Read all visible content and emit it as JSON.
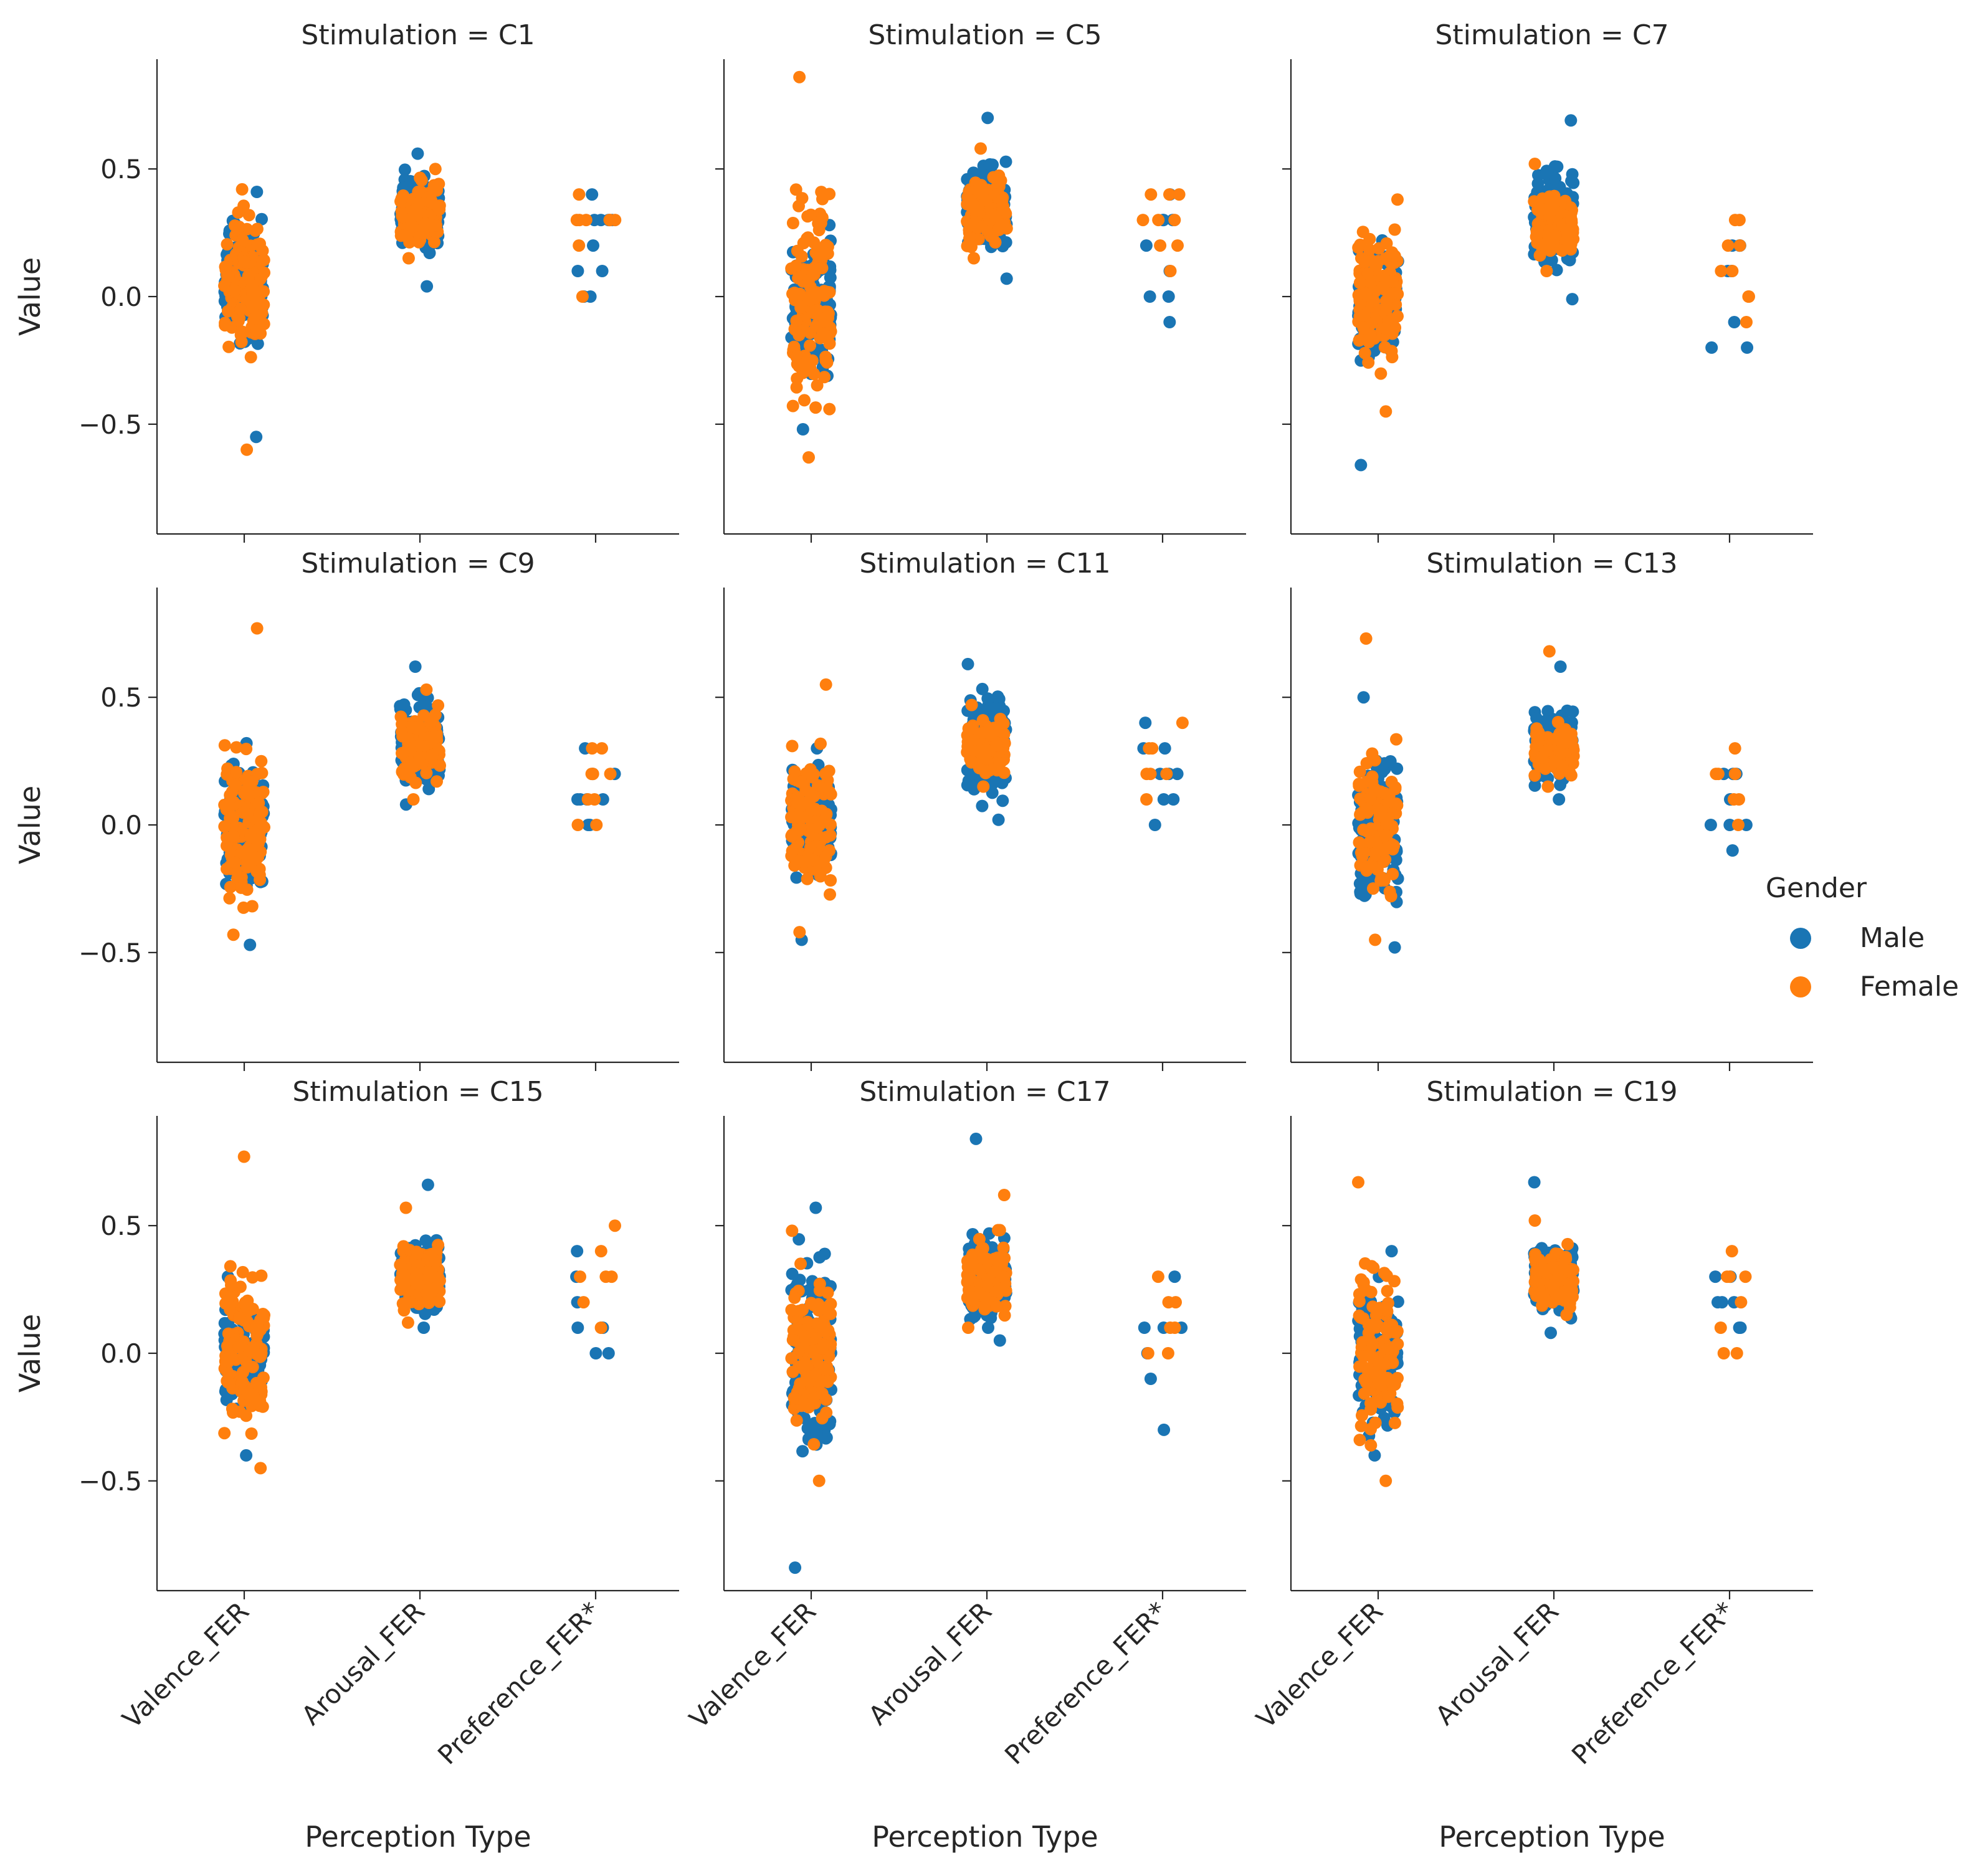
{
  "chart_data": {
    "type": "scatter",
    "subtype": "strip plot",
    "x_label": "Perception Type",
    "y_label": "Value",
    "ylim": [
      -0.93,
      0.93
    ],
    "y_ticks": [
      -0.5,
      0.0,
      0.5
    ],
    "y_tick_labels": [
      "−0.5",
      "0.0",
      "0.5"
    ],
    "categories": [
      "Valence_FER",
      "Arousal_FER",
      "Preference_FER*"
    ],
    "legend": {
      "title": "Gender",
      "entries": [
        {
          "label": "Male",
          "color": "#1a75b4"
        },
        {
          "label": "Female",
          "color": "#ff7f0e"
        }
      ],
      "placement": "right"
    },
    "panels": [
      {
        "title": "Stimulation = C1",
        "series": [
          {
            "name": "Male",
            "categories": [
              {
                "range": [
                  -0.55,
                  0.41
                ],
                "median": 0.05,
                "count": 120
              },
              {
                "range": [
                  0.04,
                  0.56
                ],
                "median": 0.33,
                "count": 120
              },
              {
                "values": [
                  0.4,
                  0.3,
                  0.3,
                  0.2,
                  0.1,
                  0.1,
                  0.0,
                  0.0,
                  0.3,
                  0.3
                ]
              }
            ]
          },
          {
            "name": "Female",
            "categories": [
              {
                "range": [
                  -0.6,
                  0.42
                ],
                "median": 0.05,
                "count": 120
              },
              {
                "range": [
                  0.15,
                  0.5
                ],
                "median": 0.33,
                "count": 120
              },
              {
                "values": [
                  0.4,
                  0.3,
                  0.3,
                  0.3,
                  0.2,
                  0.3,
                  0.0,
                  0.3,
                  0.3
                ]
              }
            ]
          }
        ]
      },
      {
        "title": "Stimulation = C5",
        "series": [
          {
            "name": "Male",
            "categories": [
              {
                "range": [
                  -0.52,
                  0.28
                ],
                "median": -0.05,
                "count": 120
              },
              {
                "range": [
                  0.07,
                  0.7
                ],
                "median": 0.33,
                "count": 120
              },
              {
                "values": [
                  0.4,
                  0.3,
                  0.3,
                  0.2,
                  0.1,
                  0.0,
                  0.0,
                  -0.1,
                  0.3
                ]
              }
            ]
          },
          {
            "name": "Female",
            "categories": [
              {
                "range": [
                  -0.63,
                  0.86
                ],
                "median": 0.0,
                "count": 120
              },
              {
                "range": [
                  0.15,
                  0.58
                ],
                "median": 0.33,
                "count": 120
              },
              {
                "values": [
                  0.4,
                  0.3,
                  0.3,
                  0.2,
                  0.4,
                  0.3,
                  0.2,
                  0.1,
                  0.4
                ]
              }
            ]
          }
        ]
      },
      {
        "title": "Stimulation = C7",
        "series": [
          {
            "name": "Male",
            "categories": [
              {
                "range": [
                  -0.66,
                  0.22
                ],
                "median": -0.05,
                "count": 120
              },
              {
                "range": [
                  -0.01,
                  0.69
                ],
                "median": 0.3,
                "count": 120
              },
              {
                "values": [
                  0.2,
                  0.1,
                  0.1,
                  -0.1,
                  -0.2,
                  -0.2,
                  0.2,
                  0.1,
                  0.2
                ]
              }
            ]
          },
          {
            "name": "Female",
            "categories": [
              {
                "range": [
                  -0.45,
                  0.38
                ],
                "median": 0.0,
                "count": 120
              },
              {
                "range": [
                  0.1,
                  0.52
                ],
                "median": 0.28,
                "count": 120
              },
              {
                "values": [
                  0.3,
                  0.3,
                  0.2,
                  0.2,
                  0.1,
                  0.1,
                  0.0,
                  0.0,
                  -0.1
                ]
              }
            ]
          }
        ]
      },
      {
        "title": "Stimulation = C9",
        "series": [
          {
            "name": "Male",
            "categories": [
              {
                "range": [
                  -0.47,
                  0.32
                ],
                "median": 0.0,
                "count": 120
              },
              {
                "range": [
                  0.08,
                  0.62
                ],
                "median": 0.33,
                "count": 120
              },
              {
                "values": [
                  0.3,
                  0.2,
                  0.2,
                  0.1,
                  0.1,
                  0.1,
                  0.0,
                  0.0,
                  0.1
                ]
              }
            ]
          },
          {
            "name": "Female",
            "categories": [
              {
                "range": [
                  -0.43,
                  0.77
                ],
                "median": 0.0,
                "count": 120
              },
              {
                "range": [
                  0.1,
                  0.53
                ],
                "median": 0.3,
                "count": 120
              },
              {
                "values": [
                  0.3,
                  0.3,
                  0.2,
                  0.2,
                  0.1,
                  0.1,
                  0.0,
                  0.0,
                  0.2
                ]
              }
            ]
          }
        ]
      },
      {
        "title": "Stimulation = C11",
        "series": [
          {
            "name": "Male",
            "categories": [
              {
                "range": [
                  -0.45,
                  0.3
                ],
                "median": 0.0,
                "count": 120
              },
              {
                "range": [
                  0.02,
                  0.63
                ],
                "median": 0.33,
                "count": 120
              },
              {
                "values": [
                  0.4,
                  0.3,
                  0.2,
                  0.2,
                  0.1,
                  0.1,
                  0.0,
                  0.2,
                  0.3
                ]
              }
            ]
          },
          {
            "name": "Female",
            "categories": [
              {
                "range": [
                  -0.42,
                  0.55
                ],
                "median": 0.0,
                "count": 120
              },
              {
                "range": [
                  0.15,
                  0.47
                ],
                "median": 0.3,
                "count": 120
              },
              {
                "values": [
                  0.4,
                  0.3,
                  0.3,
                  0.2,
                  0.2,
                  0.1,
                  0.2
                ]
              }
            ]
          }
        ]
      },
      {
        "title": "Stimulation = C13",
        "series": [
          {
            "name": "Male",
            "categories": [
              {
                "range": [
                  -0.48,
                  0.5
                ],
                "median": 0.0,
                "count": 120
              },
              {
                "range": [
                  0.1,
                  0.62
                ],
                "median": 0.3,
                "count": 120
              },
              {
                "values": [
                  0.2,
                  0.2,
                  0.1,
                  0.1,
                  0.0,
                  0.0,
                  -0.1,
                  0.2,
                  0.0
                ]
              }
            ]
          },
          {
            "name": "Female",
            "categories": [
              {
                "range": [
                  -0.45,
                  0.73
                ],
                "median": 0.0,
                "count": 120
              },
              {
                "range": [
                  0.15,
                  0.68
                ],
                "median": 0.3,
                "count": 120
              },
              {
                "values": [
                  0.3,
                  0.2,
                  0.2,
                  0.1,
                  0.1,
                  0.2,
                  0.0
                ]
              }
            ]
          }
        ]
      },
      {
        "title": "Stimulation = C15",
        "series": [
          {
            "name": "Male",
            "categories": [
              {
                "range": [
                  -0.4,
                  0.3
                ],
                "median": 0.0,
                "count": 120
              },
              {
                "range": [
                  0.1,
                  0.66
                ],
                "median": 0.3,
                "count": 120
              },
              {
                "values": [
                  0.4,
                  0.3,
                  0.2,
                  0.1,
                  0.1,
                  0.0,
                  0.0,
                  0.1
                ]
              }
            ]
          },
          {
            "name": "Female",
            "categories": [
              {
                "range": [
                  -0.45,
                  0.77
                ],
                "median": 0.0,
                "count": 120
              },
              {
                "range": [
                  0.12,
                  0.57
                ],
                "median": 0.3,
                "count": 120
              },
              {
                "values": [
                  0.5,
                  0.4,
                  0.3,
                  0.3,
                  0.2,
                  0.1,
                  0.3
                ]
              }
            ]
          }
        ]
      },
      {
        "title": "Stimulation = C17",
        "series": [
          {
            "name": "Male",
            "categories": [
              {
                "range": [
                  -0.84,
                  0.57
                ],
                "median": 0.0,
                "count": 120
              },
              {
                "range": [
                  0.05,
                  0.84
                ],
                "median": 0.3,
                "count": 120
              },
              {
                "values": [
                  0.3,
                  0.1,
                  0.1,
                  0.0,
                  -0.1,
                  -0.3,
                  0.1
                ]
              }
            ]
          },
          {
            "name": "Female",
            "categories": [
              {
                "range": [
                  -0.5,
                  0.48
                ],
                "median": 0.0,
                "count": 120
              },
              {
                "range": [
                  0.1,
                  0.62
                ],
                "median": 0.3,
                "count": 120
              },
              {
                "values": [
                  0.3,
                  0.2,
                  0.1,
                  0.1,
                  0.0,
                  0.0,
                  0.2
                ]
              }
            ]
          }
        ]
      },
      {
        "title": "Stimulation = C19",
        "series": [
          {
            "name": "Male",
            "categories": [
              {
                "range": [
                  -0.4,
                  0.4
                ],
                "median": 0.0,
                "count": 120
              },
              {
                "range": [
                  0.08,
                  0.67
                ],
                "median": 0.3,
                "count": 120
              },
              {
                "values": [
                  0.3,
                  0.2,
                  0.2,
                  0.1,
                  0.1,
                  0.3,
                  0.2
                ]
              }
            ]
          },
          {
            "name": "Female",
            "categories": [
              {
                "range": [
                  -0.5,
                  0.67
                ],
                "median": 0.0,
                "count": 120
              },
              {
                "range": [
                  0.15,
                  0.52
                ],
                "median": 0.3,
                "count": 120
              },
              {
                "values": [
                  0.4,
                  0.3,
                  0.3,
                  0.2,
                  0.1,
                  0.0,
                  0.0,
                  0.3
                ]
              }
            ]
          }
        ]
      }
    ]
  }
}
